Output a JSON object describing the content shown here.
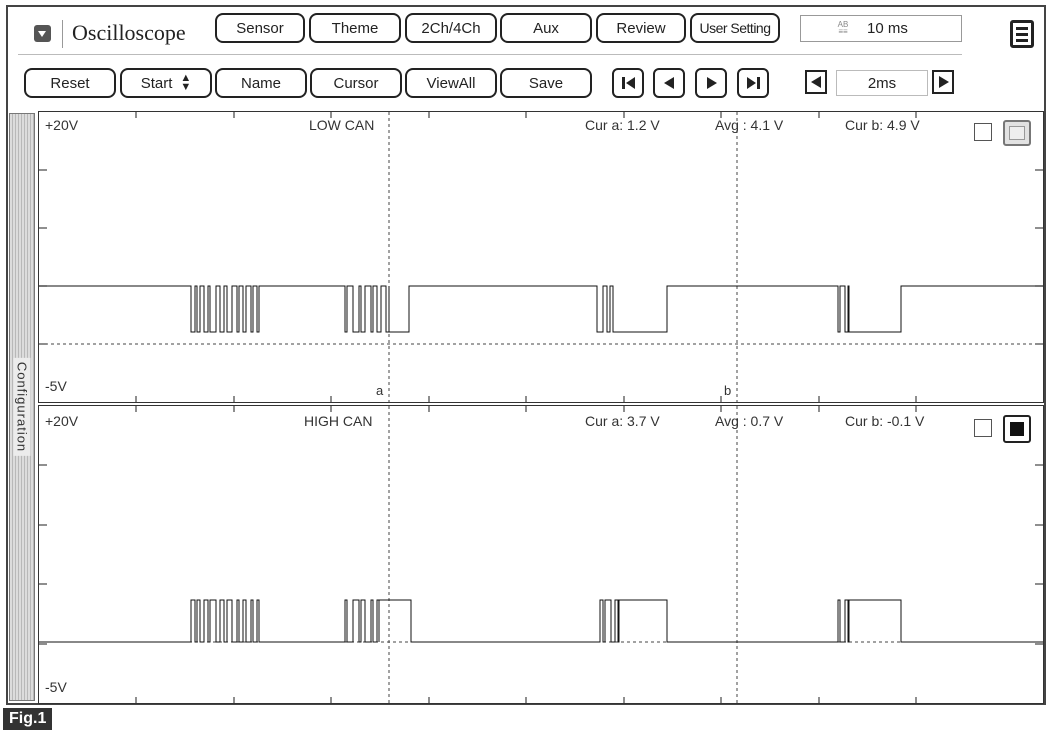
{
  "toolbar": {
    "title": "Oscilloscope",
    "menu_icon": "dropdown-square-icon",
    "buttons": [
      "Sensor",
      "Theme",
      "2Ch/4Ch",
      "Aux",
      "Review",
      "User Setting"
    ],
    "time_display": "10 ms",
    "time_display_icon": "time-scale-icon",
    "window_icon": "window-layout-icon"
  },
  "controls": {
    "buttons": [
      "Reset",
      "Start",
      "Name",
      "Cursor",
      "ViewAll",
      "Save"
    ],
    "nav_icons": [
      "skip-to-start-icon",
      "step-back-icon",
      "step-forward-icon",
      "skip-to-end-icon"
    ],
    "timebase": "2ms"
  },
  "sidebar": {
    "label": "Configuration"
  },
  "channels": [
    {
      "name": "LOW CAN",
      "v_top": "+20V",
      "v_bottom": "-5V",
      "cur_a": "Cur a: 1.2 V",
      "avg": "Avg  : 4.1 V",
      "cur_b": "Cur b: 4.9 V",
      "cursor_a_label": "a",
      "cursor_b_label": "b",
      "checked": false,
      "color_selected": false
    },
    {
      "name": "HIGH CAN",
      "v_top": "+20V",
      "v_bottom": "-5V",
      "cur_a": "Cur a: 3.7 V",
      "avg": "Avg  : 0.7 V",
      "cur_b": "Cur b: -0.1 V",
      "checked": false,
      "color_selected": true
    }
  ],
  "figure_label": "Fig.1"
}
